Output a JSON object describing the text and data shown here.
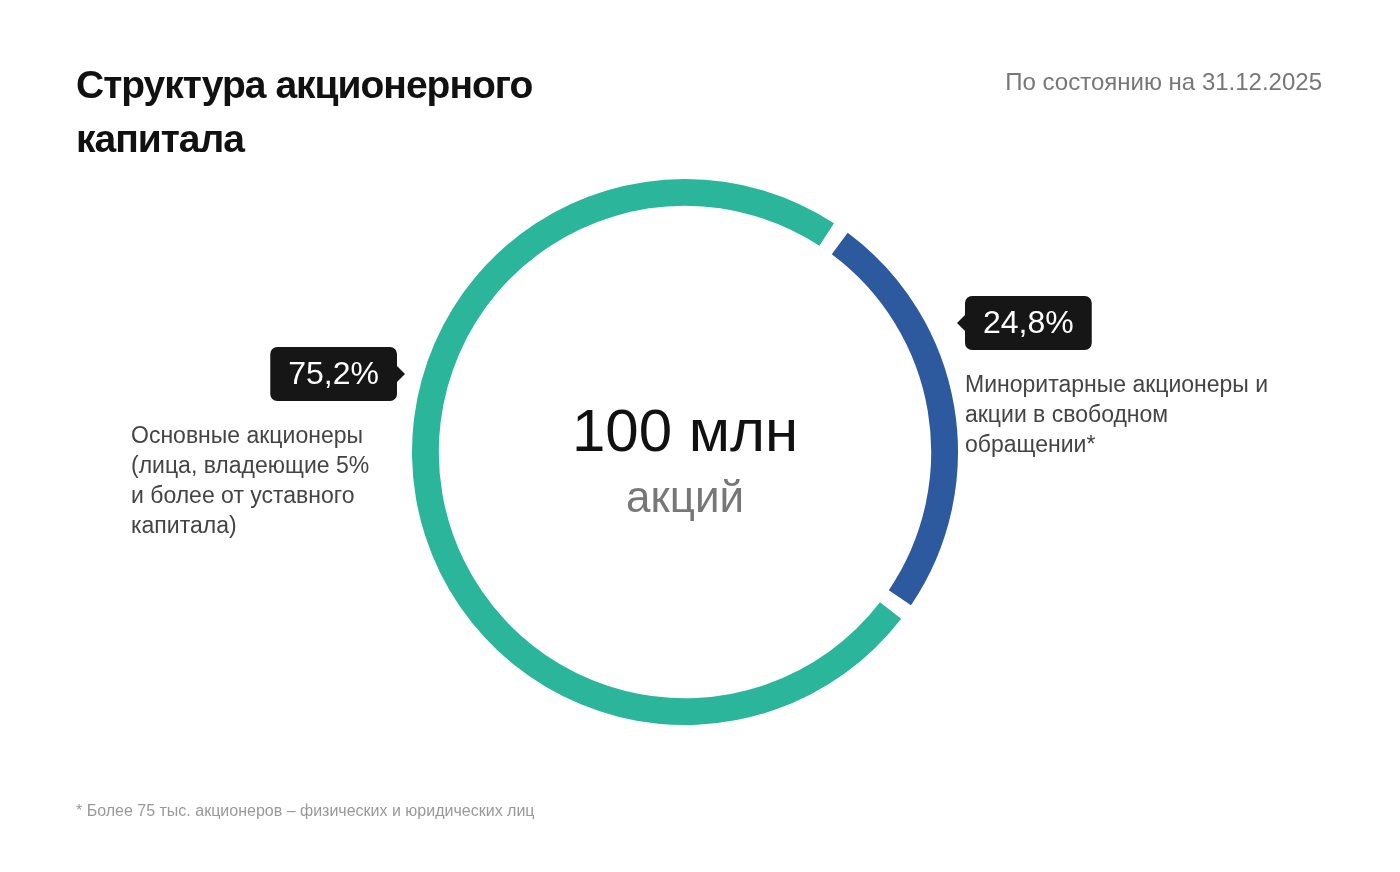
{
  "chart_data": {
    "type": "donut",
    "title": "Структура акционерного капитала",
    "subtitle": "По состоянию на 31.12.2025",
    "categories": [
      "Основные акционеры (лица, владеющие 5% и более от уставного капитала)",
      "Миноритарные акционеры и акции в свободном обращении*"
    ],
    "values": [
      75.2,
      24.8
    ],
    "value_labels": [
      "75,2%",
      "24,8%"
    ],
    "colors": [
      "#2bb59a",
      "#2d5a9e"
    ],
    "legend": false,
    "annotations": [
      "100 млн",
      "акций",
      "* Более 75 тыс. акционеров – физических и юридических лиц"
    ]
  }
}
